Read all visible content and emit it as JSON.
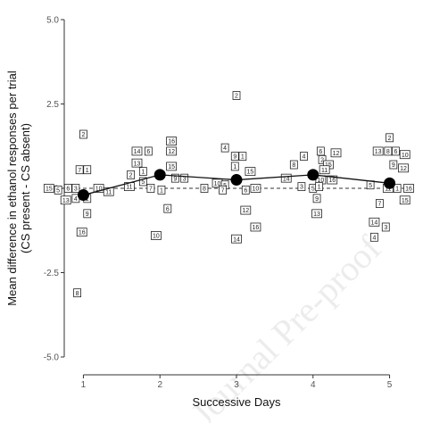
{
  "watermark": "Journal Pre-proof",
  "chart_data": {
    "type": "scatter",
    "title": "",
    "xlabel": "Successive Days",
    "ylabel_lines": [
      "Mean difference in ethanol responses per trial",
      "(CS present - CS absent)"
    ],
    "x_ticks": [
      1,
      2,
      3,
      4,
      5
    ],
    "y_ticks": [
      -5.0,
      -2.5,
      0.0,
      2.5,
      5.0
    ],
    "y_tick_labels": [
      "-5.0",
      "-2.5",
      "0.0",
      "2.5",
      "5.0"
    ],
    "xlim": [
      0.75,
      5.25
    ],
    "ylim": [
      -5.0,
      5.0
    ],
    "reference_line": {
      "y": 0,
      "style": "dashed"
    },
    "grid": false,
    "legend": "none",
    "means": [
      {
        "x": 1,
        "y": -0.2
      },
      {
        "x": 2,
        "y": 0.4
      },
      {
        "x": 3,
        "y": 0.25
      },
      {
        "x": 4,
        "y": 0.4
      },
      {
        "x": 5,
        "y": 0.15
      }
    ],
    "points": [
      {
        "x": 0.55,
        "y": 0.0,
        "label": "15"
      },
      {
        "x": 0.67,
        "y": -0.05,
        "label": "5"
      },
      {
        "x": 0.77,
        "y": -0.35,
        "label": "13"
      },
      {
        "x": 0.8,
        "y": 0.0,
        "label": "6"
      },
      {
        "x": 0.9,
        "y": 0.0,
        "label": "3"
      },
      {
        "x": 0.95,
        "y": 0.55,
        "label": "7"
      },
      {
        "x": 0.9,
        "y": -0.3,
        "label": "4"
      },
      {
        "x": 1.0,
        "y": 1.6,
        "label": "2"
      },
      {
        "x": 1.05,
        "y": 0.55,
        "label": "1"
      },
      {
        "x": 1.05,
        "y": -0.3,
        "label": "1"
      },
      {
        "x": 1.05,
        "y": -0.75,
        "label": "9"
      },
      {
        "x": 0.98,
        "y": -1.3,
        "label": "16"
      },
      {
        "x": 1.2,
        "y": 0.0,
        "label": "10"
      },
      {
        "x": 1.33,
        "y": -0.1,
        "label": "11"
      },
      {
        "x": 0.92,
        "y": -3.1,
        "label": "8"
      },
      {
        "x": 1.7,
        "y": 1.1,
        "label": "14"
      },
      {
        "x": 1.7,
        "y": 0.75,
        "label": "13"
      },
      {
        "x": 1.85,
        "y": 1.1,
        "label": "6"
      },
      {
        "x": 2.15,
        "y": 1.4,
        "label": "16"
      },
      {
        "x": 2.15,
        "y": 1.1,
        "label": "12"
      },
      {
        "x": 1.62,
        "y": 0.4,
        "label": "2"
      },
      {
        "x": 1.78,
        "y": 0.5,
        "label": "1"
      },
      {
        "x": 1.78,
        "y": 0.2,
        "label": "5"
      },
      {
        "x": 2.15,
        "y": 0.65,
        "label": "15"
      },
      {
        "x": 2.2,
        "y": 0.3,
        "label": "9"
      },
      {
        "x": 2.32,
        "y": 0.3,
        "label": "3"
      },
      {
        "x": 1.6,
        "y": 0.05,
        "label": "11"
      },
      {
        "x": 1.88,
        "y": 0.0,
        "label": "7"
      },
      {
        "x": 2.02,
        "y": -0.05,
        "label": "1"
      },
      {
        "x": 2.1,
        "y": -0.6,
        "label": "6"
      },
      {
        "x": 1.95,
        "y": -1.4,
        "label": "10"
      },
      {
        "x": 3.0,
        "y": 2.75,
        "label": "2"
      },
      {
        "x": 2.85,
        "y": 1.2,
        "label": "4"
      },
      {
        "x": 2.98,
        "y": 0.95,
        "label": "9"
      },
      {
        "x": 3.08,
        "y": 0.95,
        "label": "1"
      },
      {
        "x": 2.98,
        "y": 0.65,
        "label": "1"
      },
      {
        "x": 3.18,
        "y": 0.5,
        "label": "15"
      },
      {
        "x": 2.75,
        "y": 0.15,
        "label": "10"
      },
      {
        "x": 2.85,
        "y": 0.1,
        "label": "5"
      },
      {
        "x": 2.58,
        "y": 0.0,
        "label": "8"
      },
      {
        "x": 2.82,
        "y": -0.05,
        "label": "7"
      },
      {
        "x": 3.12,
        "y": -0.05,
        "label": "6"
      },
      {
        "x": 3.25,
        "y": 0.0,
        "label": "10"
      },
      {
        "x": 3.12,
        "y": -0.65,
        "label": "12"
      },
      {
        "x": 3.25,
        "y": -1.15,
        "label": "16"
      },
      {
        "x": 3.0,
        "y": -1.5,
        "label": "14"
      },
      {
        "x": 3.88,
        "y": 0.95,
        "label": "4"
      },
      {
        "x": 3.75,
        "y": 0.7,
        "label": "8"
      },
      {
        "x": 4.1,
        "y": 1.1,
        "label": "6"
      },
      {
        "x": 4.12,
        "y": 0.85,
        "label": "2"
      },
      {
        "x": 4.3,
        "y": 1.05,
        "label": "12"
      },
      {
        "x": 4.2,
        "y": 0.7,
        "label": "15"
      },
      {
        "x": 4.15,
        "y": 0.55,
        "label": "11"
      },
      {
        "x": 3.65,
        "y": 0.3,
        "label": "14"
      },
      {
        "x": 4.1,
        "y": 0.25,
        "label": "10"
      },
      {
        "x": 4.25,
        "y": 0.25,
        "label": "16"
      },
      {
        "x": 3.85,
        "y": 0.05,
        "label": "3"
      },
      {
        "x": 4.0,
        "y": 0.0,
        "label": "5"
      },
      {
        "x": 4.08,
        "y": 0.05,
        "label": "1"
      },
      {
        "x": 4.05,
        "y": -0.3,
        "label": "9"
      },
      {
        "x": 4.05,
        "y": -0.75,
        "label": "13"
      },
      {
        "x": 5.0,
        "y": 1.5,
        "label": "2"
      },
      {
        "x": 4.85,
        "y": 1.1,
        "label": "13"
      },
      {
        "x": 4.98,
        "y": 1.1,
        "label": "8"
      },
      {
        "x": 5.08,
        "y": 1.1,
        "label": "6"
      },
      {
        "x": 5.2,
        "y": 1.0,
        "label": "10"
      },
      {
        "x": 5.05,
        "y": 0.7,
        "label": "9"
      },
      {
        "x": 5.18,
        "y": 0.6,
        "label": "12"
      },
      {
        "x": 4.75,
        "y": 0.1,
        "label": "5"
      },
      {
        "x": 4.98,
        "y": 0.0,
        "label": "11"
      },
      {
        "x": 5.1,
        "y": 0.0,
        "label": "1"
      },
      {
        "x": 5.25,
        "y": 0.0,
        "label": "16"
      },
      {
        "x": 5.2,
        "y": -0.35,
        "label": "15"
      },
      {
        "x": 4.87,
        "y": -0.45,
        "label": "7"
      },
      {
        "x": 4.8,
        "y": -1.0,
        "label": "14"
      },
      {
        "x": 4.95,
        "y": -1.15,
        "label": "3"
      },
      {
        "x": 4.8,
        "y": -1.45,
        "label": "4"
      }
    ]
  }
}
